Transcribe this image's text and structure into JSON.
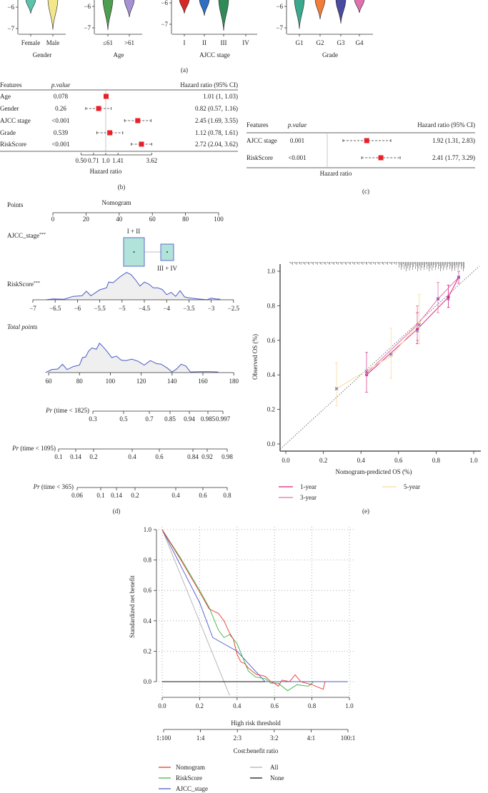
{
  "panel_labels": [
    "(a)",
    "(b)",
    "(c)",
    "(d)",
    "(e)"
  ],
  "chart_data": [
    {
      "type": "violin",
      "yticks": [
        -6,
        -7
      ],
      "panels": [
        {
          "title": "Gender",
          "groups": [
            {
              "label": "Female",
              "color": "#5cc2aa",
              "min": -6.3
            },
            {
              "label": "Male",
              "color": "#f3e78c",
              "min": -7.05
            }
          ]
        },
        {
          "title": "Age",
          "groups": [
            {
              "label": "≤61",
              "color": "#4f9e4f",
              "min": -7.1
            },
            {
              "label": ">61",
              "color": "#a592d2",
              "min": -6.5
            }
          ]
        },
        {
          "title": "AJCC stage",
          "groups": [
            {
              "label": "I",
              "color": "#d62728",
              "min": -6.5
            },
            {
              "label": "II",
              "color": "#2f6fc2",
              "min": -6.6
            },
            {
              "label": "III",
              "color": "#2e8b57",
              "min": -7.3
            },
            {
              "label": "IV",
              "color": null,
              "min": null
            }
          ]
        },
        {
          "title": "Grade",
          "groups": [
            {
              "label": "G1",
              "color": "#3aa88c",
              "min": -7.05
            },
            {
              "label": "G2",
              "color": "#f07d3a",
              "min": -6.6
            },
            {
              "label": "G3",
              "color": "#4a4aa0",
              "min": -6.8
            },
            {
              "label": "G4",
              "color": "#e070b0",
              "min": -6.3
            }
          ]
        }
      ]
    },
    {
      "type": "forest",
      "headers": {
        "features": "Features",
        "p": "p.value",
        "hr": "Hazard ratio (95% CI)"
      },
      "rows": [
        {
          "feature": "Age",
          "p": "0.078",
          "hr": 1.01,
          "lo": 1.0,
          "hi": 1.03,
          "label": "1.01 (1, 1.03)"
        },
        {
          "feature": "Gender",
          "p": "0.26",
          "hr": 0.82,
          "lo": 0.57,
          "hi": 1.16,
          "label": "0.82 (0.57, 1.16)"
        },
        {
          "feature": "AJCC stage",
          "p": "<0.001",
          "hr": 2.45,
          "lo": 1.69,
          "hi": 3.55,
          "label": "2.45 (1.69, 3.55)"
        },
        {
          "feature": "Grade",
          "p": "0.539",
          "hr": 1.12,
          "lo": 0.78,
          "hi": 1.61,
          "label": "1.12 (0.78, 1.61)"
        },
        {
          "feature": "RiskScore",
          "p": "<0.001",
          "hr": 2.72,
          "lo": 2.04,
          "hi": 3.62,
          "label": "2.72 (2.04, 3.62)"
        }
      ],
      "xticks": [
        0.5,
        0.71,
        1.0,
        1.41,
        3.62
      ],
      "xtick_labels": [
        "0.50",
        "0.71",
        "1.0",
        "1.41",
        "3.62"
      ],
      "xlabel": "Hazard ratio",
      "marker_color": "#e8202a"
    },
    {
      "type": "forest",
      "headers": {
        "features": "Features",
        "p": "p.value",
        "hr": "Hazard ratio (95% CI)"
      },
      "rows": [
        {
          "feature": "AJCC stage",
          "p": "0.001",
          "hr": 1.92,
          "lo": 1.31,
          "hi": 2.83,
          "label": "1.92 (1.31, 2.83)"
        },
        {
          "feature": "RiskScore",
          "p": "<0.001",
          "hr": 2.41,
          "lo": 1.77,
          "hi": 3.29,
          "label": "2.41 (1.77, 3.29)"
        }
      ],
      "xlabel": "Hazard ratio",
      "marker_color": "#e8202a"
    },
    {
      "type": "nomogram",
      "title": "Nomogram",
      "points": {
        "label": "Points",
        "ticks": [
          "0",
          "20",
          "40",
          "60",
          "80",
          "100"
        ]
      },
      "ajcc": {
        "label": "AJCC_stage",
        "stars": "***",
        "levels": [
          {
            "label": "I + II",
            "points": 42
          },
          {
            "label": "III + IV",
            "points": 68
          }
        ],
        "fill": "#b2e3da",
        "stroke": "#5b6fc8"
      },
      "riskscore": {
        "label": "RiskScore",
        "stars": "***",
        "ticks": [
          "−7",
          "−6.5",
          "−6",
          "−5.5",
          "−5",
          "−4.5",
          "−4",
          "−3.5",
          "−3",
          "−2.5"
        ],
        "density_x": [
          -6.7,
          -6.55,
          -6.3,
          -6.1,
          -5.9,
          -5.8,
          -5.7,
          -5.5,
          -5.35,
          -5.3,
          -5.2,
          -5.05,
          -4.9,
          -4.8,
          -4.7,
          -4.6,
          -4.5,
          -4.4,
          -4.3,
          -4.2,
          -4.1,
          -4.0,
          -3.9,
          -3.8,
          -3.7,
          -3.6,
          -3.5,
          -3.3,
          -3.1,
          -3.0,
          -2.9,
          -2.8
        ],
        "density_y": [
          0,
          0.03,
          0.02,
          0.12,
          0.14,
          0.3,
          0.14,
          0.35,
          0.42,
          0.62,
          0.6,
          0.8,
          0.96,
          0.88,
          0.7,
          0.48,
          0.62,
          0.55,
          0.42,
          0.42,
          0.36,
          0.18,
          0.26,
          0.12,
          0.32,
          0.1,
          0.07,
          0.03,
          0.0,
          0.06,
          0.03,
          0.02
        ]
      },
      "total_points": {
        "label": "Total points",
        "ticks": [
          "60",
          "80",
          "100",
          "120",
          "140",
          "160",
          "180"
        ],
        "density_x": [
          58,
          62,
          66,
          69,
          72,
          76,
          80,
          82,
          84,
          86,
          88,
          91,
          93,
          95,
          98,
          101,
          104,
          107,
          110,
          114,
          118,
          122,
          126,
          130,
          133,
          137,
          140,
          143,
          146,
          149,
          152,
          158,
          165,
          170
        ],
        "density_y": [
          0,
          0.1,
          0.12,
          0.28,
          0.1,
          0.2,
          0.25,
          0.5,
          0.52,
          0.72,
          0.82,
          0.78,
          0.98,
          0.88,
          0.7,
          0.5,
          0.55,
          0.42,
          0.4,
          0.45,
          0.38,
          0.25,
          0.4,
          0.3,
          0.28,
          0.15,
          0.02,
          0.12,
          0.28,
          0.22,
          0.02,
          0.03,
          0.03,
          0.02
        ]
      },
      "probability_axes": [
        {
          "label_pr": "Pr",
          "label_rest": " (time < 1825)",
          "ticks": [
            "0.3",
            "0.5",
            "0.7",
            "0.85",
            "0.94",
            "0.985",
            "0.997"
          ]
        },
        {
          "label_pr": "Pr",
          "label_rest": " (time < 1095)",
          "ticks": [
            "0.1",
            "0.14",
            "0.2",
            "0.4",
            "0.6",
            "0.84",
            "0.92",
            "0.98"
          ]
        },
        {
          "label_pr": "Pr",
          "label_rest": " (time < 365)",
          "ticks": [
            "0.06",
            "0.1",
            "0.14",
            "0.2",
            "0.4",
            "0.6",
            "0.8"
          ]
        }
      ]
    },
    {
      "type": "line",
      "xlabel": "Nomogram-predicted OS (%)",
      "ylabel": "Observed OS (%)",
      "xlim": [
        0,
        1
      ],
      "ylim": [
        0,
        1
      ],
      "xticks": [
        "0.0",
        "0.2",
        "0.4",
        "0.6",
        "0.8",
        "1.0"
      ],
      "yticks": [
        "0.0",
        "0.2",
        "0.4",
        "0.6",
        "0.8",
        "1.0"
      ],
      "series": [
        {
          "name": "1-year",
          "color": "#e0207a",
          "x": [
            0.43,
            0.7,
            0.865,
            0.92
          ],
          "y": [
            0.4,
            0.665,
            0.85,
            0.965
          ],
          "lo": [
            0.3,
            0.58,
            0.79,
            0.93
          ],
          "hi": [
            0.53,
            0.76,
            0.92,
            1.0
          ]
        },
        {
          "name": "3-year",
          "color": "#e46fae",
          "x": [
            0.43,
            0.7,
            0.81,
            0.92
          ],
          "y": [
            0.41,
            0.69,
            0.84,
            0.965
          ],
          "lo": [
            0.3,
            0.6,
            0.76,
            0.93
          ],
          "hi": [
            0.53,
            0.8,
            0.935,
            1.0
          ]
        },
        {
          "name": "5-year",
          "color": "#f5dc9a",
          "x": [
            0.27,
            0.56,
            0.71
          ],
          "y": [
            0.32,
            0.51,
            0.7
          ],
          "lo": [
            0.22,
            0.38,
            0.58
          ],
          "hi": [
            0.47,
            0.67,
            0.865
          ]
        }
      ],
      "bootstrap_x": [
        0.27,
        0.43,
        0.56,
        0.7,
        0.71,
        0.81,
        0.865,
        0.92
      ],
      "bootstrap_y": [
        0.32,
        0.42,
        0.52,
        0.655,
        0.69,
        0.84,
        0.84,
        0.965
      ],
      "legend": "bottom"
    },
    {
      "type": "line",
      "xlabel": "High risk threshold",
      "ylabel": "Standardized net benefit",
      "x2label": "Cost:benefit ratio",
      "xlim": [
        0,
        1
      ],
      "ylim": [
        -0.09,
        1
      ],
      "xticks": [
        "0.0",
        "0.2",
        "0.4",
        "0.6",
        "0.8",
        "1.0"
      ],
      "yticks": [
        "0.0",
        "0.2",
        "0.4",
        "0.6",
        "0.8",
        "1.0"
      ],
      "x2ticks": [
        "1:100",
        "1:4",
        "2:3",
        "3:2",
        "4:1",
        "100:1"
      ],
      "series": [
        {
          "name": "Nomogram",
          "color": "#e8352d",
          "points": [
            [
              0,
              1
            ],
            [
              0.1,
              0.8
            ],
            [
              0.2,
              0.59
            ],
            [
              0.25,
              0.48
            ],
            [
              0.28,
              0.46
            ],
            [
              0.3,
              0.45
            ],
            [
              0.33,
              0.4
            ],
            [
              0.36,
              0.32
            ],
            [
              0.38,
              0.28
            ],
            [
              0.4,
              0.18
            ],
            [
              0.42,
              0.13
            ],
            [
              0.44,
              0.12
            ],
            [
              0.46,
              0.09
            ],
            [
              0.5,
              0.05
            ],
            [
              0.55,
              0.035
            ],
            [
              0.58,
              0.0
            ],
            [
              0.6,
              -0.01
            ],
            [
              0.62,
              -0.03
            ],
            [
              0.64,
              0.01
            ],
            [
              0.68,
              0.0
            ],
            [
              0.71,
              0.045
            ],
            [
              0.74,
              0.0
            ],
            [
              0.8,
              -0.02
            ],
            [
              0.86,
              -0.05
            ],
            [
              0.87,
              0.0
            ]
          ]
        },
        {
          "name": "RiskScore",
          "color": "#3cb43c",
          "points": [
            [
              0,
              1
            ],
            [
              0.1,
              0.81
            ],
            [
              0.2,
              0.6
            ],
            [
              0.25,
              0.49
            ],
            [
              0.3,
              0.34
            ],
            [
              0.33,
              0.29
            ],
            [
              0.36,
              0.31
            ],
            [
              0.4,
              0.25
            ],
            [
              0.43,
              0.16
            ],
            [
              0.46,
              0.07
            ],
            [
              0.5,
              0.03
            ],
            [
              0.55,
              0.02
            ],
            [
              0.58,
              -0.01
            ],
            [
              0.62,
              -0.01
            ],
            [
              0.67,
              -0.06
            ],
            [
              0.72,
              -0.02
            ],
            [
              0.78,
              -0.03
            ],
            [
              0.81,
              0.0
            ]
          ]
        },
        {
          "name": "AJCC_stage",
          "color": "#4a5ac8",
          "points": [
            [
              0,
              1
            ],
            [
              0.2,
              0.52
            ],
            [
              0.27,
              0.29
            ],
            [
              0.4,
              0.2
            ],
            [
              0.55,
              0.0
            ],
            [
              0.99,
              0.0
            ]
          ]
        },
        {
          "name": "All",
          "color": "#b0b0b0",
          "points": [
            [
              0,
              1
            ],
            [
              0.36,
              -0.09
            ]
          ]
        },
        {
          "name": "None",
          "color": "#111111",
          "points": [
            [
              0,
              0
            ],
            [
              0.99,
              0
            ]
          ]
        }
      ],
      "grid": true,
      "legend": "bottom"
    }
  ]
}
